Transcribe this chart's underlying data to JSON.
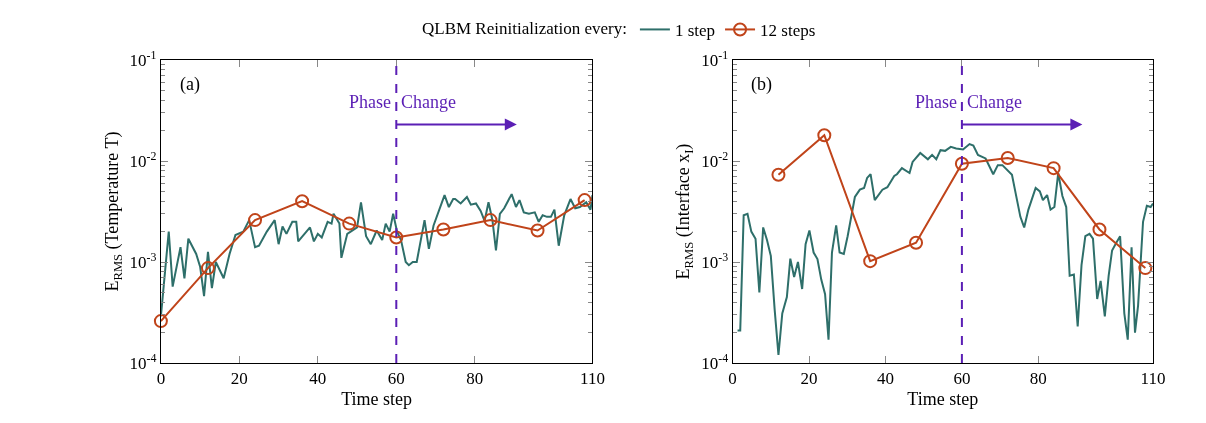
{
  "chart_data": [
    {
      "type": "line",
      "ylabel": "E$_{RMS}$ (Temperature T)",
      "xlabel": "Time step",
      "legend_title": "QLBM Reinitialization every:",
      "legend": "top",
      "annotations": [
        "(a)",
        "Phase",
        "Change"
      ],
      "series": [
        {
          "name": "1 step",
          "color": "#2e6f6a",
          "marker": "none",
          "x": [
            0,
            2,
            3,
            5,
            6,
            7,
            9,
            10,
            11,
            12,
            13,
            14,
            16,
            17.5,
            19,
            21,
            22.5,
            24,
            25,
            27,
            29,
            30,
            31,
            32,
            33.5,
            34.5,
            35,
            38,
            39,
            40,
            41,
            42.5,
            43.5,
            44,
            45.5,
            46,
            47.5,
            50,
            51,
            52.3,
            53.5,
            55,
            56.4,
            57.3,
            58.3,
            59.2,
            60.2,
            61.2,
            62.4,
            63.2,
            64.2,
            65.2,
            67.2,
            68.3,
            69.5,
            72.3,
            73.4,
            74.5,
            75,
            76.4,
            78,
            79,
            80.3,
            81.5,
            82.5,
            83.5,
            84.5,
            85.4,
            86.4,
            87.5,
            89.4,
            90.5,
            91.4,
            92.5,
            93.8,
            95.3,
            96.3,
            97.3,
            98.4,
            99.4,
            100.3,
            101.4,
            102.8,
            104.4,
            105.6,
            106.8,
            108.4,
            109.5,
            110
          ],
          "values": [
            0.00029,
            0.002,
            0.00057,
            0.0014,
            0.00069,
            0.0017,
            0.0012,
            0.0009,
            0.00046,
            0.00126,
            0.00055,
            0.001,
            0.00069,
            0.0012,
            0.00185,
            0.002,
            0.0026,
            0.0014,
            0.00145,
            0.002,
            0.0026,
            0.0015,
            0.00225,
            0.0019,
            0.0025,
            0.0025,
            0.0016,
            0.0022,
            0.0016,
            0.0019,
            0.00175,
            0.0025,
            0.0024,
            0.003,
            0.0024,
            0.0011,
            0.0019,
            0.0022,
            0.0039,
            0.0018,
            0.0015,
            0.00205,
            0.00165,
            0.0024,
            0.002,
            0.003,
            0.002,
            0.00165,
            0.001,
            0.00093,
            0.001,
            0.001,
            0.0026,
            0.00135,
            0.0023,
            0.0046,
            0.0035,
            0.0042,
            0.0042,
            0.0038,
            0.0044,
            0.0037,
            0.0038,
            0.0032,
            0.00255,
            0.0039,
            0.0026,
            0.0013,
            0.003,
            0.0034,
            0.0047,
            0.0035,
            0.0041,
            0.0031,
            0.003,
            0.0031,
            0.0025,
            0.0029,
            0.0028,
            0.0028,
            0.0033,
            0.00145,
            0.0029,
            0.0042,
            0.0034,
            0.0035,
            0.0039,
            0.0033,
            0.0046
          ]
        },
        {
          "name": "12 steps",
          "color": "#c0441a",
          "marker": "circle",
          "x": [
            0,
            12,
            24,
            36,
            48,
            60,
            72,
            84,
            96,
            108
          ],
          "values": [
            0.00026,
            0.00087,
            0.0026,
            0.004,
            0.0024,
            0.00175,
            0.0021,
            0.0026,
            0.00205,
            0.0041
          ]
        }
      ],
      "xlim": [
        0,
        110
      ],
      "xticks": [
        0,
        20,
        40,
        60,
        80,
        110
      ],
      "ylim": [
        0.0001,
        0.1
      ],
      "log": "y",
      "yticks": [
        {
          "value": 0.0001,
          "label": "10$^{-4}$"
        },
        {
          "value": 0.001,
          "label": "10$^{-3}$"
        },
        {
          "value": 0.01,
          "label": "10$^{-2}$"
        },
        {
          "value": 0.1,
          "label": "10$^{-1}$"
        }
      ],
      "ref_lines": [
        {
          "axis": "x",
          "value": 60,
          "color": "#5b1fb5",
          "line_style": "dashed"
        }
      ]
    },
    {
      "type": "line",
      "ylabel": "E$_{RMS}$ (Interface x$_{I}$)",
      "xlabel": "Time step",
      "annotations": [
        "(b)",
        "Phase",
        "Change"
      ],
      "series": [
        {
          "color": "#2e6f6a",
          "marker": "none",
          "x": [
            1.3,
            2,
            2.9,
            3.9,
            4.9,
            6,
            7,
            8,
            9,
            10,
            11,
            12,
            13,
            14.2,
            15.1,
            16.1,
            17.1,
            18.2,
            19.1,
            20.1,
            21.2,
            22.2,
            23.2,
            24.2,
            25.1,
            26,
            27.1,
            28,
            29.1,
            30.1,
            32,
            33.3,
            34.4,
            35.2,
            36.1,
            37.2,
            39.2,
            40.5,
            42.3,
            43,
            44.3,
            46.3,
            47.1,
            49.1,
            51.1,
            52.2,
            53.3,
            54.4,
            55.6,
            57.1,
            58.5,
            60.3,
            62,
            63,
            64.2,
            66.2,
            68.2,
            69.4,
            70.6,
            73.1,
            75.3,
            76.3,
            77.4,
            79.3,
            80.4,
            81.2,
            82.3,
            83.2,
            84.2,
            85.2,
            86.3,
            87.3,
            88.2,
            89.3,
            90.3,
            91.3,
            92.3,
            93.4,
            94.3,
            95.4,
            96.3,
            97.4,
            98.4,
            99.3,
            100.4,
            101.4,
            102.5,
            103.4,
            104.4,
            105.3,
            106.1,
            107.4,
            108.4,
            109.4,
            110
          ],
          "values": [
            0.00021,
            0.00021,
            0.0029,
            0.003,
            0.002,
            0.0017,
            0.0005,
            0.0022,
            0.00165,
            0.00115,
            0.00034,
            0.00012,
            0.00031,
            0.00045,
            0.00108,
            0.00071,
            0.001,
            0.00054,
            0.0015,
            0.00205,
            0.00124,
            0.00107,
            0.00067,
            0.00048,
            0.00017,
            0.00124,
            0.0023,
            0.00124,
            0.0012,
            0.0018,
            0.0044,
            0.0052,
            0.0054,
            0.0068,
            0.0074,
            0.0041,
            0.0052,
            0.0055,
            0.0071,
            0.0074,
            0.0085,
            0.0076,
            0.0098,
            0.012,
            0.0104,
            0.0115,
            0.0104,
            0.0128,
            0.0126,
            0.0138,
            0.0133,
            0.013,
            0.0147,
            0.0142,
            0.0115,
            0.0106,
            0.0074,
            0.0091,
            0.0091,
            0.0073,
            0.0028,
            0.0022,
            0.0033,
            0.0054,
            0.005,
            0.0041,
            0.0046,
            0.0033,
            0.0035,
            0.0076,
            0.0045,
            0.0035,
            0.00073,
            0.00075,
            0.00023,
            0.00093,
            0.0018,
            0.0019,
            0.0017,
            0.00043,
            0.00065,
            0.00029,
            0.00073,
            0.0013,
            0.00155,
            0.0018,
            0.00031,
            0.00017,
            0.0014,
            0.0002,
            0.00037,
            0.0025,
            0.0036,
            0.0035,
            0.0038
          ]
        },
        {
          "color": "#c0441a",
          "marker": "circle",
          "x": [
            12,
            24,
            36,
            48,
            60,
            72,
            84,
            96,
            108
          ],
          "values": [
            0.0073,
            0.018,
            0.00102,
            0.00155,
            0.0094,
            0.0107,
            0.0085,
            0.0021,
            0.00087
          ]
        }
      ],
      "xlim": [
        0,
        110
      ],
      "xticks": [
        0,
        20,
        40,
        60,
        80,
        110
      ],
      "ylim": [
        0.0001,
        0.1
      ],
      "log": "y",
      "yticks": [
        {
          "value": 0.0001,
          "label": "10$^{-4}$"
        },
        {
          "value": 0.001,
          "label": "10$^{-3}$"
        },
        {
          "value": 0.01,
          "label": "10$^{-2}$"
        },
        {
          "value": 0.1,
          "label": "10$^{-1}$"
        }
      ],
      "ref_lines": [
        {
          "axis": "x",
          "value": 60,
          "color": "#5b1fb5",
          "line_style": "dashed"
        }
      ]
    }
  ]
}
